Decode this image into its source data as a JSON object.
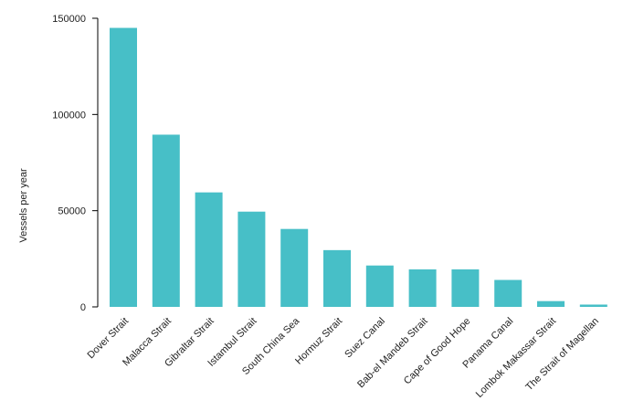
{
  "chart_data": {
    "type": "bar",
    "title": "",
    "xlabel": "",
    "ylabel": "Vessels per year",
    "ylim": [
      0,
      150000
    ],
    "yticks": [
      "0",
      "50000",
      "100000",
      "150000"
    ],
    "grid": false,
    "legend": "none",
    "bar_color": "#47bfc7",
    "categories": [
      "Dover Strait",
      "Malacca Strait",
      "Gibraltar Strait",
      "Istambul Strait",
      "South China Sea",
      "Hormuz Strait",
      "Suez Canal",
      "Bab-el Mandeb Strait",
      "Cape of Good Hope",
      "Panama Canal",
      "Lombok Makassar Strait",
      "The Strait of Magellan"
    ],
    "values": [
      145000,
      89500,
      59500,
      49500,
      40500,
      29500,
      21500,
      19500,
      19500,
      14000,
      3000,
      1200
    ]
  }
}
